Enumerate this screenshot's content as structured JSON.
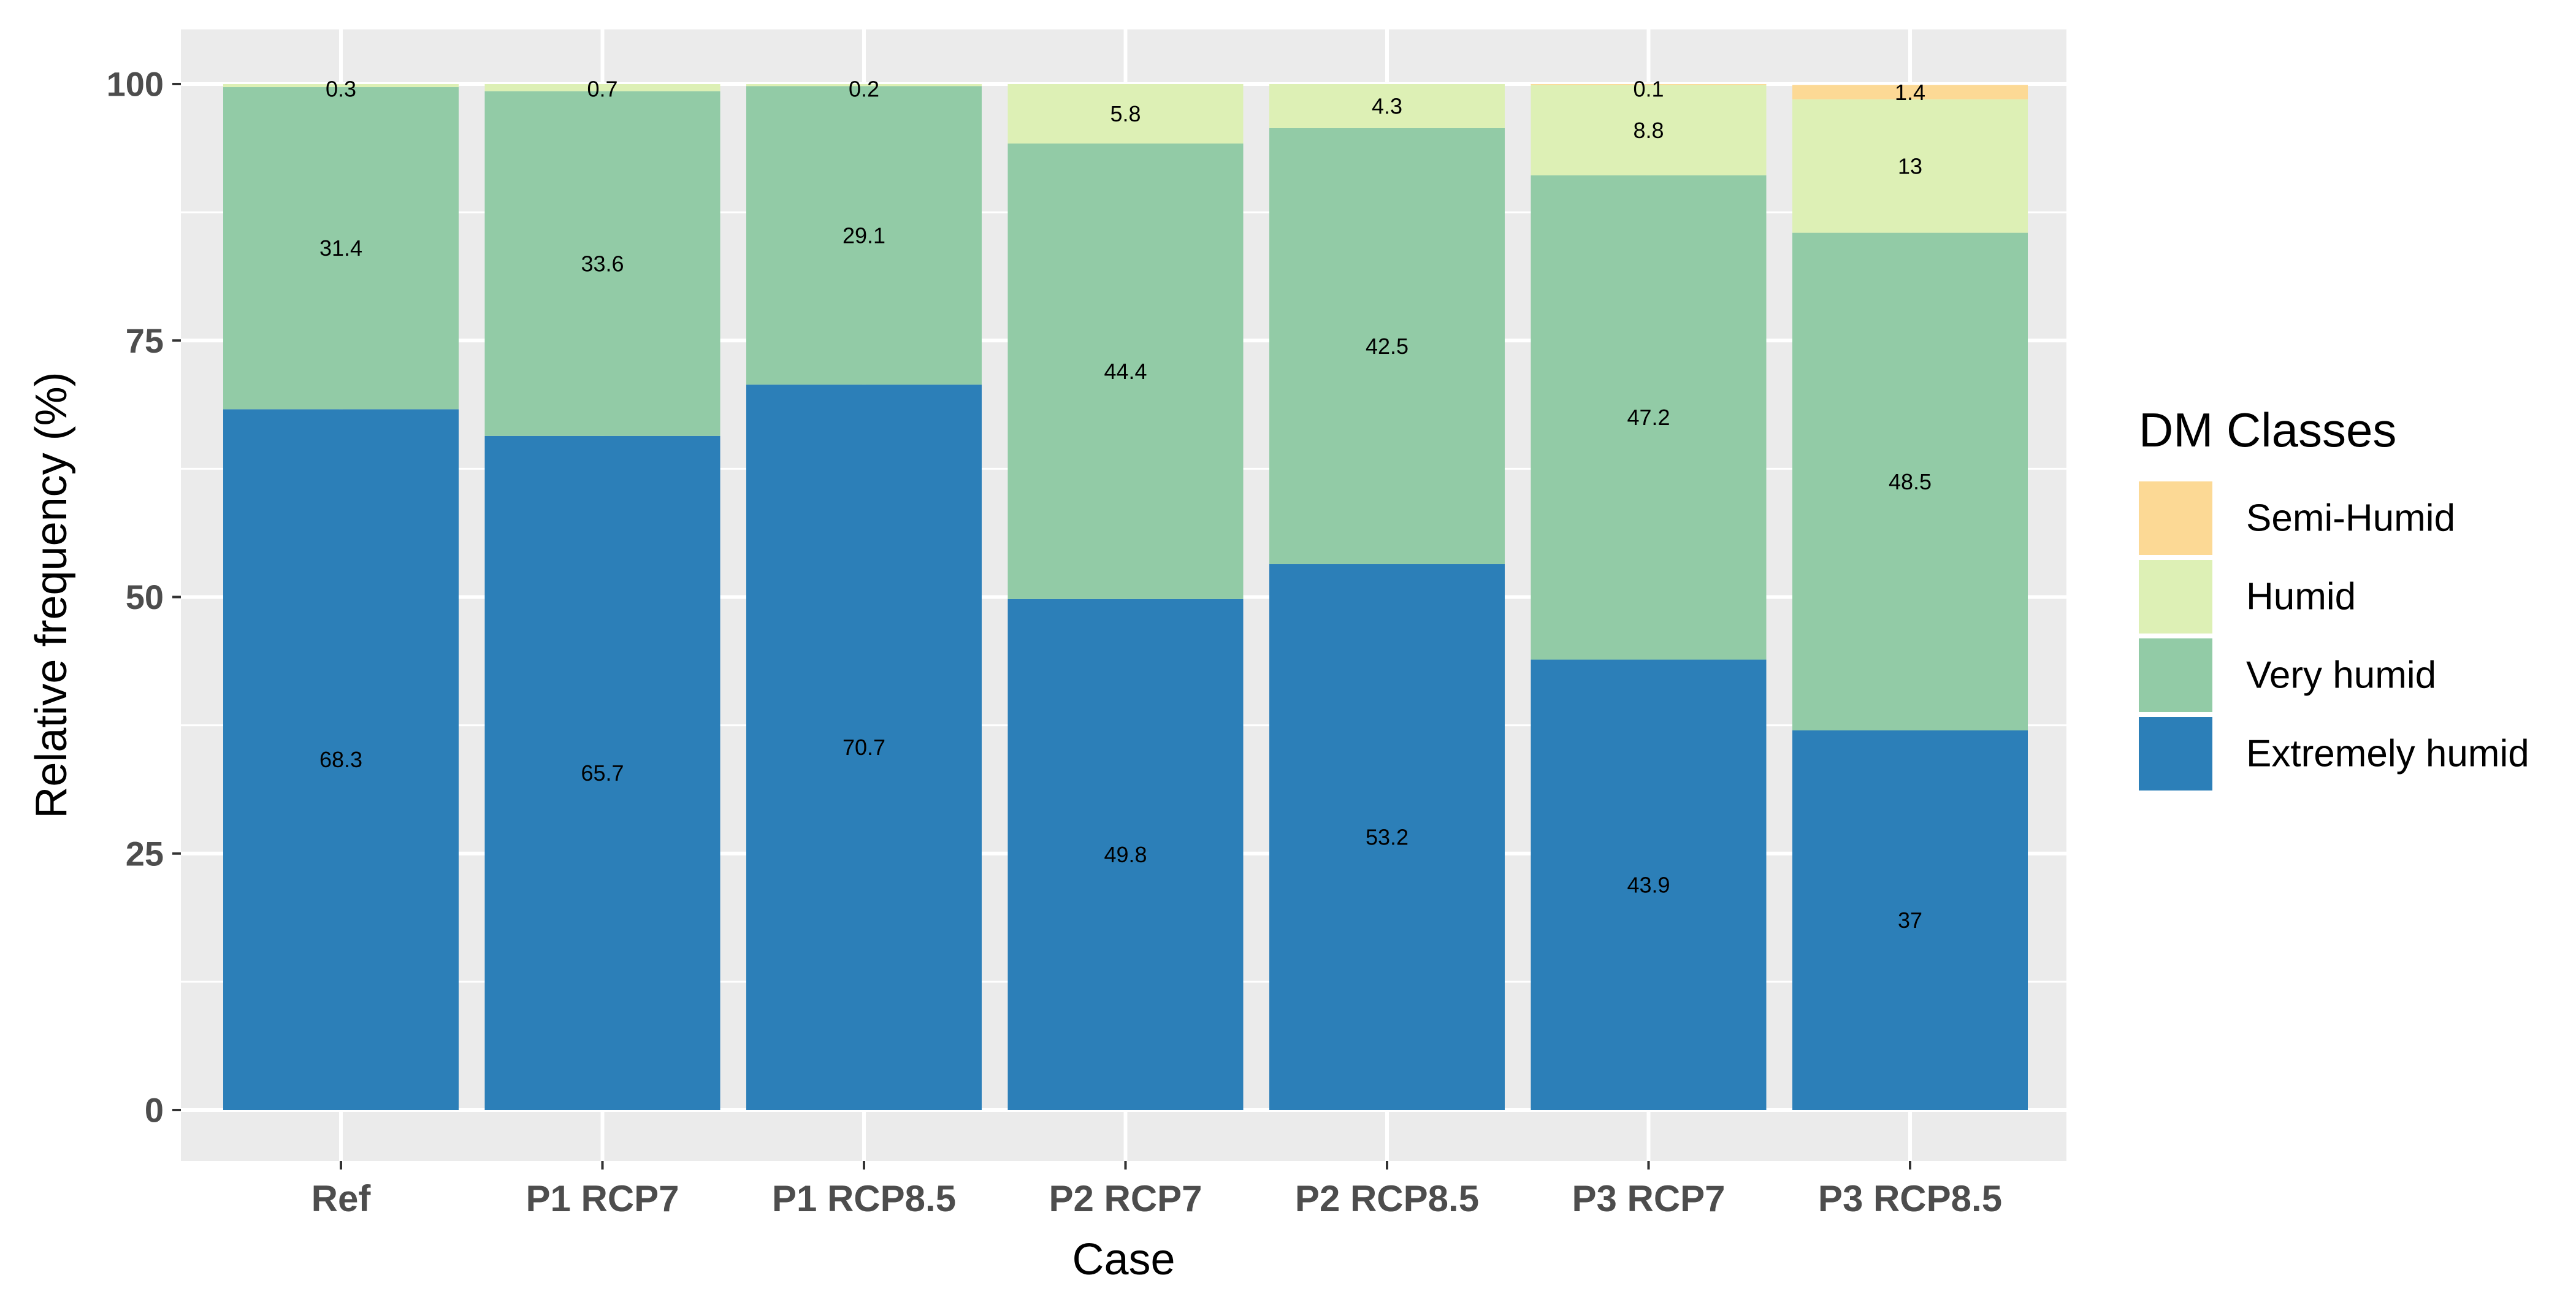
{
  "chart_data": {
    "type": "bar",
    "stacked": true,
    "categories": [
      "Ref",
      "P1 RCP7",
      "P1 RCP8.5",
      "P2 RCP7",
      "P2 RCP8.5",
      "P3 RCP7",
      "P3 RCP8.5"
    ],
    "series": [
      {
        "name": "Extremely humid",
        "color": "#2c7fb8",
        "values": [
          68.3,
          65.7,
          70.7,
          49.8,
          53.2,
          43.9,
          37
        ],
        "labels": [
          "68.3",
          "65.7",
          "70.7",
          "49.8",
          "53.2",
          "43.9",
          "37"
        ]
      },
      {
        "name": "Very humid",
        "color": "#92cba6",
        "values": [
          31.4,
          33.6,
          29.1,
          44.4,
          42.5,
          47.2,
          48.5
        ],
        "labels": [
          "31.4",
          "33.6",
          "29.1",
          "44.4",
          "42.5",
          "47.2",
          "48.5"
        ]
      },
      {
        "name": "Humid",
        "color": "#ddf0b5",
        "values": [
          0.3,
          0.7,
          0.2,
          5.8,
          4.3,
          8.8,
          13
        ],
        "labels": [
          "0.3",
          "0.7",
          "0.2",
          "5.8",
          "4.3",
          "8.8",
          "13"
        ]
      },
      {
        "name": "Semi-Humid",
        "color": "#fcd995",
        "values": [
          0,
          0,
          0,
          0,
          0,
          0.1,
          1.4
        ],
        "labels": [
          "",
          "",
          "",
          "",
          "",
          "0.1",
          "1.4"
        ]
      }
    ],
    "legend_order": [
      "Semi-Humid",
      "Humid",
      "Very humid",
      "Extremely humid"
    ],
    "legend_title": "DM Classes",
    "legend_position": "right",
    "xlabel": "Case",
    "ylabel": "Relative frequency (%)",
    "ylim": [
      0,
      100
    ],
    "yticks": [
      0,
      25,
      50,
      75,
      100
    ],
    "grid": true,
    "panel_background": "#ebebeb",
    "grid_color": "#ffffff"
  }
}
